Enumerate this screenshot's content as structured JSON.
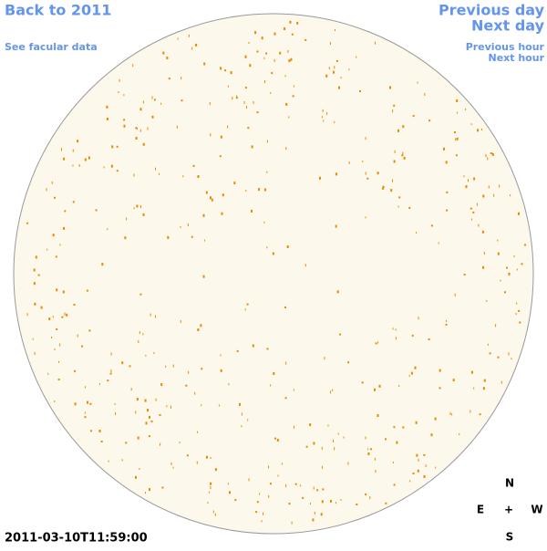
{
  "nav": {
    "back": "Back to 2011",
    "facular": "See facular data",
    "previous_day": "Previous day",
    "next_day": "Next day",
    "previous_hour": "Previous hour",
    "next_hour": "Next hour"
  },
  "timestamp": "2011-03-10T11:59:00",
  "compass": {
    "north": "N",
    "east": "E",
    "center": "+",
    "west": "W",
    "south": "S"
  }
}
